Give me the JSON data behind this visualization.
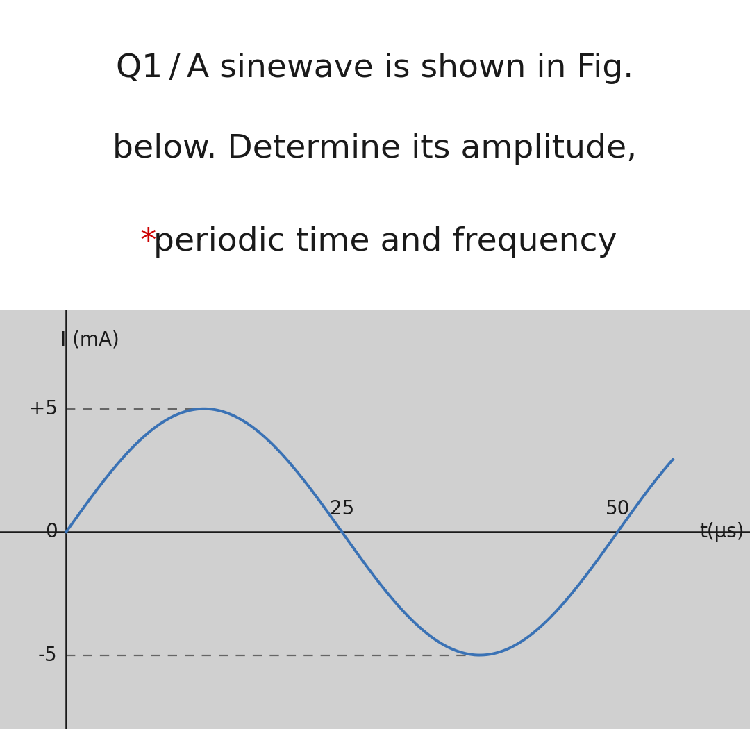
{
  "title_line1": "Q1 / A sinewave is shown in Fig.",
  "title_line2": "below. Determine its amplitude,",
  "title_star": "*",
  "title_line3_rest": " periodic time and frequency",
  "title_star_color": "#cc0000",
  "title_fontsize": 34,
  "title_color": "#1a1a1a",
  "bg_top": "#ffffff",
  "bg_plot": "#d0d0d0",
  "amplitude": 5,
  "period": 50,
  "t_start": 0,
  "t_end": 55,
  "ylabel": "I (mA)",
  "xlabel": "t(μs)",
  "sine_color": "#3a72b5",
  "sine_linewidth": 2.8,
  "dashed_color": "#666666",
  "dashed_linewidth": 1.6,
  "dashed_dash": [
    6,
    5
  ],
  "axis_linewidth": 1.8,
  "axis_color": "#1a1a1a",
  "ylim": [
    -8.0,
    9.0
  ],
  "xlim": [
    -6,
    62
  ],
  "label_fontsize": 20,
  "tick_fontsize": 20,
  "ylabel_fontsize": 20,
  "xtick_y_offset": 0.55,
  "ytick_x_offset": -0.8
}
